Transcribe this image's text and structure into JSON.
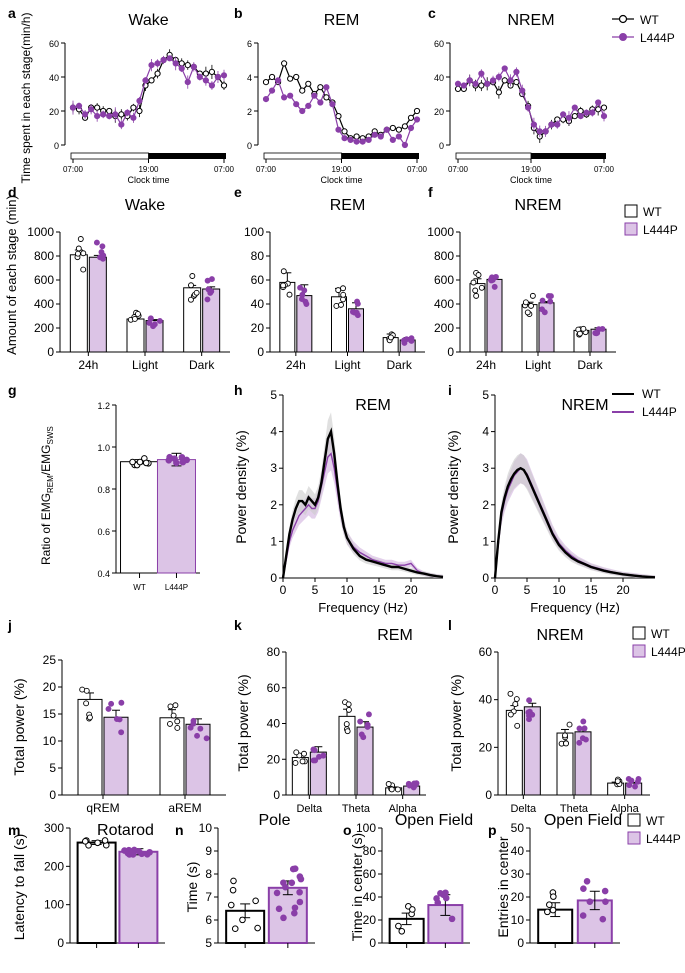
{
  "colors": {
    "wt": "#000000",
    "l444p": "#8a3fa8",
    "l444p_fill": "#dcc4e6",
    "band": "#dcc4e6"
  },
  "legend": {
    "wt": "WT",
    "l444p": "L444P"
  },
  "chart_data": [
    {
      "panel": "a",
      "type": "line",
      "title": "Wake",
      "xlabel": "Clock time",
      "ylabel": "Time spent in each stage(min/h)",
      "xticks": [
        "07:00",
        "19:00",
        "07:00"
      ],
      "ylim": [
        0,
        60
      ],
      "yticks": [
        0,
        20,
        40,
        60
      ],
      "series": [
        {
          "name": "WT",
          "values": [
            22,
            21,
            16,
            22,
            22,
            20,
            20,
            17,
            18,
            17,
            22,
            20,
            35,
            38,
            42,
            50,
            53,
            50,
            48,
            47,
            46,
            42,
            42,
            43,
            40,
            35
          ]
        },
        {
          "name": "L444P",
          "values": [
            22,
            23,
            18,
            21,
            17,
            18,
            17,
            18,
            12,
            19,
            16,
            26,
            38,
            47,
            48,
            50,
            51,
            48,
            45,
            37,
            46,
            40,
            38,
            35,
            40,
            41
          ]
        }
      ]
    },
    {
      "panel": "b",
      "type": "line",
      "title": "REM",
      "xlabel": "Clock time",
      "ylabel": "",
      "xticks": [
        "07:00",
        "19:00",
        "07:00"
      ],
      "ylim": [
        0,
        6
      ],
      "yticks": [
        0,
        2,
        4,
        6
      ],
      "series": [
        {
          "name": "WT",
          "values": [
            3.7,
            4.0,
            3.7,
            4.8,
            3.9,
            4.0,
            3.2,
            3.6,
            3.0,
            3.4,
            2.8,
            2.5,
            1.7,
            0.8,
            0.4,
            0.5,
            0.4,
            0.5,
            0.8,
            0.6,
            0.9,
            1.0,
            0.9,
            1.1,
            1.6,
            2.0
          ]
        },
        {
          "name": "L444P",
          "values": [
            2.7,
            3.2,
            3.8,
            2.8,
            2.9,
            2.4,
            2.0,
            2.3,
            2.9,
            2.5,
            3.4,
            2.4,
            0.9,
            0.4,
            0.3,
            0.2,
            0.2,
            0.3,
            0.6,
            0.5,
            0.9,
            0.3,
            0.5,
            0.0,
            1.0,
            1.5
          ]
        }
      ]
    },
    {
      "panel": "c",
      "type": "line",
      "title": "NREM",
      "xlabel": "Clock time",
      "ylabel": "",
      "xticks": [
        "07:00",
        "19:00",
        "07:00"
      ],
      "ylim": [
        0,
        60
      ],
      "yticks": [
        0,
        20,
        40,
        60
      ],
      "series": [
        {
          "name": "WT",
          "values": [
            33,
            33,
            38,
            35,
            35,
            36,
            37,
            31,
            38,
            35,
            37,
            30,
            23,
            10,
            5,
            8,
            12,
            15,
            15,
            14,
            17,
            20,
            18,
            21,
            21,
            22
          ]
        },
        {
          "name": "L444P",
          "values": [
            36,
            35,
            38,
            36,
            42,
            36,
            38,
            40,
            45,
            38,
            43,
            32,
            22,
            12,
            8,
            8,
            12,
            12,
            18,
            16,
            22,
            17,
            19,
            19,
            25,
            17
          ]
        }
      ]
    },
    {
      "panel": "d",
      "type": "bar",
      "title": "Wake",
      "ylabel": "Amount of each stage (min)",
      "categories": [
        "24h",
        "Light",
        "Dark"
      ],
      "ylim": [
        0,
        1000
      ],
      "yticks": [
        0,
        200,
        400,
        600,
        800,
        1000
      ],
      "series": [
        {
          "name": "WT",
          "values": [
            810,
            275,
            535
          ],
          "sem": [
            40,
            22,
            20
          ]
        },
        {
          "name": "L444P",
          "values": [
            790,
            262,
            525
          ],
          "sem": [
            15,
            8,
            18
          ]
        }
      ]
    },
    {
      "panel": "e",
      "type": "bar",
      "title": "REM",
      "ylabel": "",
      "categories": [
        "24h",
        "Light",
        "Dark"
      ],
      "ylim": [
        0,
        100
      ],
      "yticks": [
        0,
        20,
        40,
        60,
        80,
        100
      ],
      "series": [
        {
          "name": "WT",
          "values": [
            58,
            46,
            12
          ],
          "sem": [
            8,
            7,
            3
          ]
        },
        {
          "name": "L444P",
          "values": [
            47,
            36,
            10
          ],
          "sem": [
            9,
            5,
            2
          ]
        }
      ]
    },
    {
      "panel": "f",
      "type": "bar",
      "title": "NREM",
      "ylabel": "",
      "categories": [
        "24h",
        "Light",
        "Dark"
      ],
      "ylim": [
        0,
        1000
      ],
      "yticks": [
        0,
        200,
        400,
        600,
        800,
        1000
      ],
      "series": [
        {
          "name": "WT",
          "values": [
            570,
            395,
            180
          ],
          "sem": [
            40,
            20,
            20
          ]
        },
        {
          "name": "L444P",
          "values": [
            605,
            410,
            190
          ],
          "sem": [
            25,
            10,
            12
          ]
        }
      ]
    },
    {
      "panel": "g",
      "type": "bar",
      "title": "",
      "ylabel": "Ratio of EMG REM /EMG SWS",
      "ylabel_main": "Ratio of EMG",
      "ylabel_sub1": "REM",
      "ylabel_mid": "/EMG",
      "ylabel_sub2": "SWS",
      "categories": [
        "WT",
        "L444P"
      ],
      "ylim": [
        0.4,
        1.2
      ],
      "yticks": [
        0.4,
        0.6,
        0.8,
        1.0,
        1.2
      ],
      "values": [
        0.93,
        0.94
      ],
      "sem": [
        0.01,
        0.03
      ]
    },
    {
      "panel": "h",
      "type": "line",
      "title": "REM",
      "xlabel": "Frequency (Hz)",
      "ylabel": "Power density (%)",
      "xlim": [
        0,
        25
      ],
      "xticks": [
        0,
        5,
        10,
        15,
        20
      ],
      "ylim": [
        0,
        5
      ],
      "yticks": [
        0,
        1,
        2,
        3,
        4,
        5
      ],
      "x": [
        0,
        0.5,
        1,
        1.5,
        2,
        2.5,
        3,
        3.5,
        4,
        4.5,
        5,
        5.5,
        6,
        6.5,
        7,
        7.5,
        8,
        8.5,
        9,
        9.5,
        10,
        11,
        12,
        13,
        14,
        15,
        16,
        17,
        18,
        19,
        20,
        21,
        22,
        23,
        24,
        25
      ],
      "series": [
        {
          "name": "WT",
          "values": [
            0,
            0.6,
            1.2,
            1.6,
            1.9,
            2.1,
            2.1,
            2.0,
            2.2,
            2.1,
            2.0,
            2.2,
            2.6,
            3.2,
            3.8,
            4.0,
            3.4,
            2.6,
            1.9,
            1.4,
            1.1,
            0.8,
            0.6,
            0.5,
            0.45,
            0.4,
            0.35,
            0.3,
            0.3,
            0.25,
            0.2,
            0.15,
            0.12,
            0.08,
            0.05,
            0.03
          ]
        },
        {
          "name": "L444P",
          "values": [
            0,
            0.5,
            1.0,
            1.3,
            1.5,
            1.7,
            1.8,
            1.9,
            2.0,
            1.9,
            1.9,
            2.1,
            2.5,
            2.9,
            3.3,
            3.4,
            3.0,
            2.4,
            1.8,
            1.4,
            1.1,
            0.85,
            0.7,
            0.6,
            0.5,
            0.45,
            0.4,
            0.4,
            0.35,
            0.35,
            0.4,
            0.2,
            0.12,
            0.08,
            0.05,
            0.03
          ]
        }
      ]
    },
    {
      "panel": "i",
      "type": "line",
      "title": "NREM",
      "xlabel": "Frequency (Hz)",
      "ylabel": "Power density (%)",
      "xlim": [
        0,
        25
      ],
      "xticks": [
        0,
        5,
        10,
        15,
        20
      ],
      "ylim": [
        0,
        5
      ],
      "yticks": [
        0,
        1,
        2,
        3,
        4,
        5
      ],
      "x": [
        0,
        0.5,
        1,
        1.5,
        2,
        2.5,
        3,
        3.5,
        4,
        4.5,
        5,
        5.5,
        6,
        6.5,
        7,
        7.5,
        8,
        8.5,
        9,
        9.5,
        10,
        11,
        12,
        13,
        14,
        15,
        16,
        17,
        18,
        19,
        20,
        21,
        22,
        23,
        24,
        25
      ],
      "series": [
        {
          "name": "WT",
          "values": [
            0,
            1.0,
            1.8,
            2.2,
            2.5,
            2.7,
            2.85,
            2.95,
            3.0,
            2.95,
            2.8,
            2.6,
            2.4,
            2.2,
            2.0,
            1.8,
            1.6,
            1.4,
            1.2,
            1.05,
            0.9,
            0.7,
            0.55,
            0.45,
            0.38,
            0.3,
            0.25,
            0.2,
            0.16,
            0.13,
            0.1,
            0.08,
            0.06,
            0.04,
            0.03,
            0.02
          ]
        },
        {
          "name": "L444P",
          "values": [
            0,
            0.9,
            1.7,
            2.1,
            2.4,
            2.6,
            2.8,
            2.9,
            3.0,
            2.95,
            2.85,
            2.65,
            2.45,
            2.25,
            2.05,
            1.85,
            1.65,
            1.45,
            1.25,
            1.1,
            0.95,
            0.75,
            0.6,
            0.48,
            0.4,
            0.32,
            0.27,
            0.22,
            0.18,
            0.14,
            0.11,
            0.09,
            0.07,
            0.05,
            0.03,
            0.02
          ]
        }
      ]
    },
    {
      "panel": "j",
      "type": "bar",
      "title": "",
      "ylabel": "Total power (%)",
      "categories": [
        "qREM",
        "aREM"
      ],
      "ylim": [
        0,
        25
      ],
      "yticks": [
        0,
        5,
        10,
        15,
        20,
        25
      ],
      "series": [
        {
          "name": "WT",
          "values": [
            17.7,
            14.3
          ],
          "sem": [
            1.2,
            1.5
          ]
        },
        {
          "name": "L444P",
          "values": [
            14.4,
            13.1
          ],
          "sem": [
            1.3,
            1.0
          ]
        }
      ]
    },
    {
      "panel": "k",
      "type": "bar",
      "title": "REM",
      "ylabel": "Total power (%)",
      "categories": [
        "Delta",
        "Theta",
        "Alpha"
      ],
      "ylim": [
        0,
        80
      ],
      "yticks": [
        0,
        20,
        40,
        60,
        80
      ],
      "series": [
        {
          "name": "WT",
          "values": [
            21,
            44,
            4
          ],
          "sem": [
            2,
            4,
            0.5
          ]
        },
        {
          "name": "L444P",
          "values": [
            24,
            38,
            5
          ],
          "sem": [
            3,
            3,
            0.6
          ]
        }
      ]
    },
    {
      "panel": "l",
      "type": "bar",
      "title": "NREM",
      "ylabel": "Total power (%)",
      "categories": [
        "Delta",
        "Theta",
        "Alpha"
      ],
      "ylim": [
        0,
        60
      ],
      "yticks": [
        0,
        20,
        40,
        60
      ],
      "series": [
        {
          "name": "WT",
          "values": [
            35.5,
            26,
            5
          ],
          "sem": [
            2,
            1.5,
            0.4
          ]
        },
        {
          "name": "L444P",
          "values": [
            37,
            26.5,
            5
          ],
          "sem": [
            1.5,
            0.8,
            0.3
          ]
        }
      ]
    },
    {
      "panel": "m",
      "type": "bar",
      "title": "Rotarod",
      "ylabel": "Latency to fall (s)",
      "categories": [
        "WT",
        "L444P"
      ],
      "ylim": [
        0,
        300
      ],
      "yticks": [
        0,
        100,
        200,
        300
      ],
      "values": [
        262,
        238
      ],
      "sem": [
        5,
        8
      ]
    },
    {
      "panel": "n",
      "type": "bar",
      "title": "Pole",
      "ylabel": "Time (s)",
      "categories": [
        "WT",
        "L444P"
      ],
      "ylim": [
        5,
        10
      ],
      "yticks": [
        5,
        6,
        7,
        8,
        9,
        10
      ],
      "values": [
        6.4,
        7.4
      ],
      "sem": [
        0.3,
        0.3
      ]
    },
    {
      "panel": "o",
      "type": "bar",
      "title": "Open Field",
      "ylabel": "Time in center (s)",
      "categories": [
        "WT",
        "L444P"
      ],
      "ylim": [
        0,
        100
      ],
      "yticks": [
        0,
        20,
        40,
        60,
        80,
        100
      ],
      "values": [
        21,
        33
      ],
      "sem": [
        5,
        9
      ]
    },
    {
      "panel": "p",
      "type": "bar",
      "title": "Open Field",
      "ylabel": "Entries in center",
      "categories": [
        "WT",
        "L444P"
      ],
      "ylim": [
        0,
        50
      ],
      "yticks": [
        0,
        10,
        20,
        30,
        40,
        50
      ],
      "values": [
        14.5,
        18.5
      ],
      "sem": [
        3,
        4
      ]
    }
  ]
}
